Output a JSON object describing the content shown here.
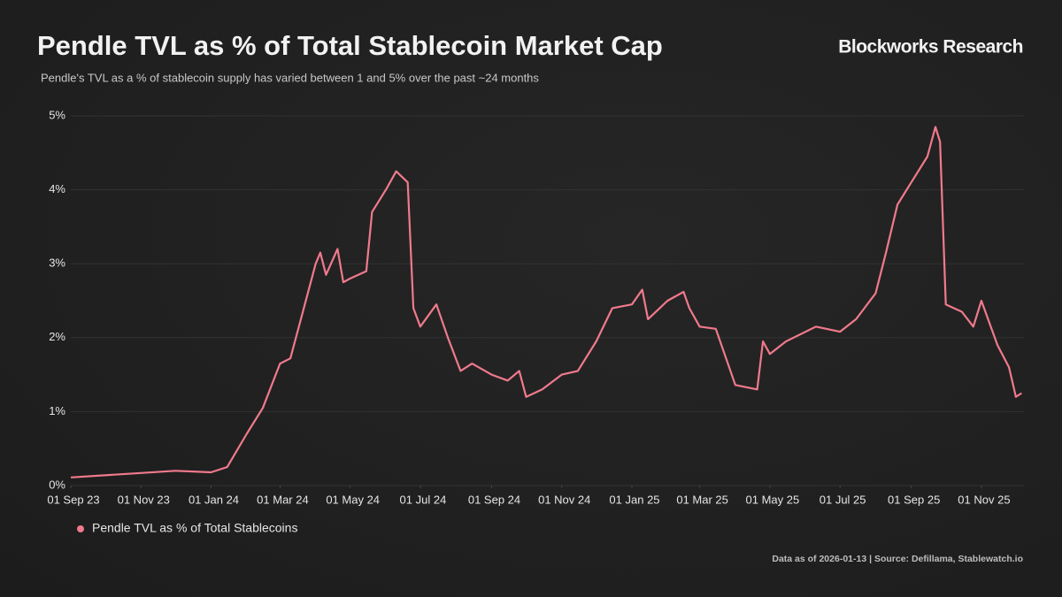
{
  "chart_data": {
    "type": "line",
    "title": "Pendle TVL as % of Total Stablecoin Market Cap",
    "subtitle": "Pendle's TVL as a % of stablecoin supply has varied between 1 and 5% over the past ~24 months",
    "brand": "Blockworks Research",
    "footnote": "Data as of 2026-01-13 | Source: Defillama, Stablewatch.io",
    "x": [
      "2023-09-01",
      "2023-11-01",
      "2023-12-01",
      "2024-01-01",
      "2024-01-15",
      "2024-02-01",
      "2024-02-15",
      "2024-03-01",
      "2024-03-10",
      "2024-03-20",
      "2024-04-01",
      "2024-04-05",
      "2024-04-10",
      "2024-04-20",
      "2024-04-25",
      "2024-05-01",
      "2024-05-15",
      "2024-05-20",
      "2024-06-01",
      "2024-06-10",
      "2024-06-20",
      "2024-06-25",
      "2024-07-01",
      "2024-07-15",
      "2024-07-25",
      "2024-08-05",
      "2024-08-15",
      "2024-09-01",
      "2024-09-15",
      "2024-09-25",
      "2024-10-01",
      "2024-10-15",
      "2024-11-01",
      "2024-11-15",
      "2024-12-01",
      "2024-12-15",
      "2025-01-01",
      "2025-01-10",
      "2025-01-15",
      "2025-02-01",
      "2025-02-15",
      "2025-02-20",
      "2025-03-01",
      "2025-03-15",
      "2025-04-01",
      "2025-04-20",
      "2025-04-25",
      "2025-05-01",
      "2025-05-15",
      "2025-06-01",
      "2025-06-10",
      "2025-07-01",
      "2025-07-15",
      "2025-08-01",
      "2025-08-10",
      "2025-08-20",
      "2025-09-01",
      "2025-09-15",
      "2025-09-22",
      "2025-09-26",
      "2025-10-01",
      "2025-10-15",
      "2025-10-25",
      "2025-11-01",
      "2025-11-15",
      "2025-11-25",
      "2025-12-01",
      "2025-12-06"
    ],
    "series": [
      {
        "name": "Pendle TVL as % of Total Stablecoins",
        "color": "#f07a8c",
        "values": [
          0.11,
          0.17,
          0.2,
          0.18,
          0.25,
          0.7,
          1.05,
          1.65,
          1.72,
          2.3,
          3.0,
          3.15,
          2.85,
          3.2,
          2.75,
          2.8,
          2.9,
          3.7,
          4.0,
          4.25,
          4.1,
          2.4,
          2.15,
          2.45,
          2.0,
          1.55,
          1.65,
          1.5,
          1.42,
          1.55,
          1.2,
          1.3,
          1.5,
          1.55,
          1.95,
          2.4,
          2.45,
          2.65,
          2.25,
          2.5,
          2.62,
          2.4,
          2.15,
          2.12,
          1.36,
          1.3,
          1.95,
          1.78,
          1.95,
          2.08,
          2.15,
          2.08,
          2.25,
          2.6,
          3.15,
          3.8,
          4.1,
          4.45,
          4.85,
          4.65,
          2.45,
          2.35,
          2.15,
          2.5,
          1.9,
          1.6,
          1.2,
          1.25
        ]
      }
    ],
    "xlim": [
      "2023-09-01",
      "2025-12-08"
    ],
    "xticks": [
      {
        "value": "2023-09-01",
        "label": "01 Sep 23"
      },
      {
        "value": "2023-11-01",
        "label": "01 Nov 23"
      },
      {
        "value": "2024-01-01",
        "label": "01 Jan 24"
      },
      {
        "value": "2024-03-01",
        "label": "01 Mar 24"
      },
      {
        "value": "2024-05-01",
        "label": "01 May 24"
      },
      {
        "value": "2024-07-01",
        "label": "01 Jul 24"
      },
      {
        "value": "2024-09-01",
        "label": "01 Sep 24"
      },
      {
        "value": "2024-11-01",
        "label": "01 Nov 24"
      },
      {
        "value": "2025-01-01",
        "label": "01 Jan 25"
      },
      {
        "value": "2025-03-01",
        "label": "01 Mar 25"
      },
      {
        "value": "2025-05-01",
        "label": "01 May 25"
      },
      {
        "value": "2025-07-01",
        "label": "01 Jul 25"
      },
      {
        "value": "2025-09-01",
        "label": "01 Sep 25"
      },
      {
        "value": "2025-11-01",
        "label": "01 Nov 25"
      }
    ],
    "ylim": [
      0,
      5
    ],
    "yticks": [
      {
        "value": 0,
        "label": "0%"
      },
      {
        "value": 1,
        "label": "1%"
      },
      {
        "value": 2,
        "label": "2%"
      },
      {
        "value": 3,
        "label": "3%"
      },
      {
        "value": 4,
        "label": "4%"
      },
      {
        "value": 5,
        "label": "5%"
      }
    ],
    "grid": true
  }
}
